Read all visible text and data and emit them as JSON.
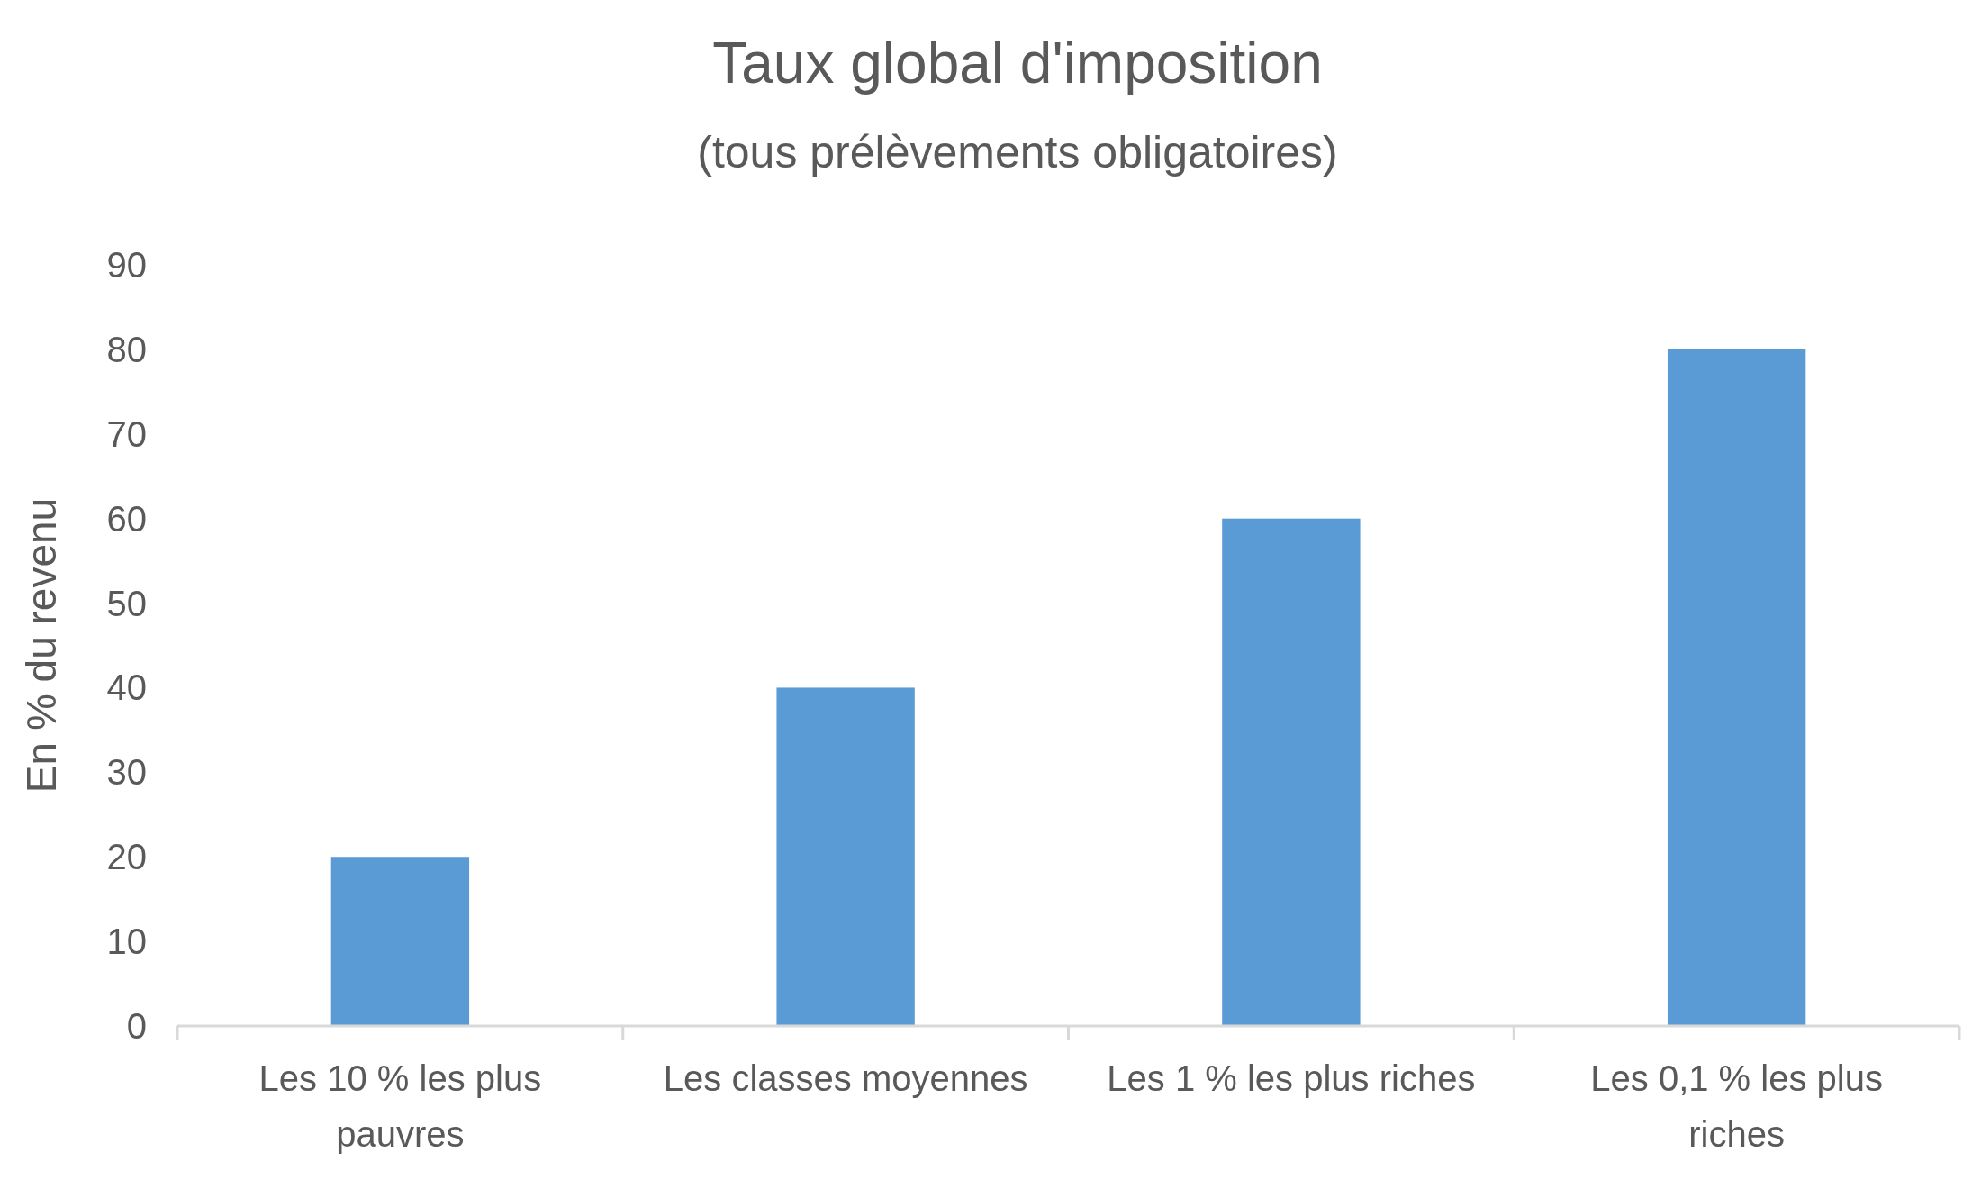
{
  "chart_data": {
    "type": "bar",
    "title": "Taux global d'imposition",
    "subtitle": "(tous prélèvements obligatoires)",
    "ylabel": "En % du revenu",
    "categories": [
      "Les 10 % les plus pauvres",
      "Les classes moyennes",
      "Les 1 % les plus riches",
      "Les 0,1 % les plus riches"
    ],
    "values": [
      20,
      40,
      60,
      80
    ],
    "color": "#5b9bd5",
    "ylim": [
      0,
      90
    ],
    "yticks": [
      0,
      10,
      20,
      30,
      40,
      50,
      60,
      70,
      80,
      90
    ],
    "grid": false
  }
}
